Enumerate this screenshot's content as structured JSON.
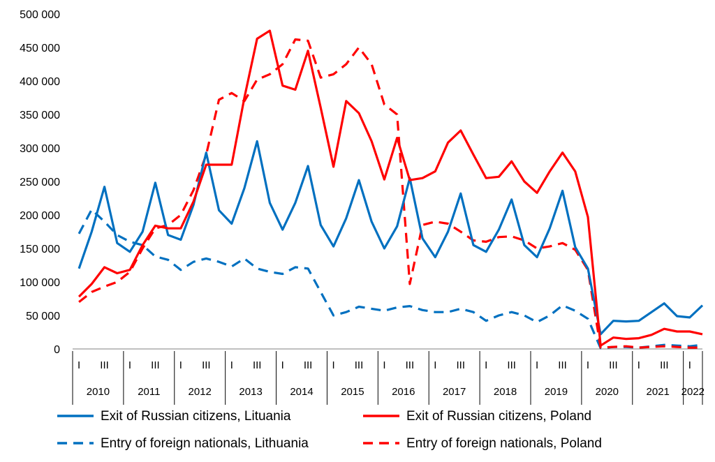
{
  "chart_data": {
    "type": "line",
    "title": "",
    "xlabel": "",
    "ylabel": "",
    "ylim": [
      0,
      500000
    ],
    "yticks": [
      "0",
      "50 000",
      "100 000",
      "150 000",
      "200 000",
      "250 000",
      "300 000",
      "350 000",
      "400 000",
      "450 000",
      "500 000"
    ],
    "years": [
      "2010",
      "2011",
      "2012",
      "2013",
      "2014",
      "2015",
      "2016",
      "2017",
      "2018",
      "2019",
      "2020",
      "2021",
      "2022"
    ],
    "quarter_labels": [
      [
        "I",
        "III"
      ],
      [
        "I",
        "III"
      ],
      [
        "I",
        "III"
      ],
      [
        "I",
        "III"
      ],
      [
        "I",
        "III"
      ],
      [
        "I",
        "III"
      ],
      [
        "I",
        "III"
      ],
      [
        "I",
        "III"
      ],
      [
        "I",
        "III"
      ],
      [
        "I",
        "III"
      ],
      [
        "I",
        "III"
      ],
      [
        "I",
        "III"
      ],
      [
        "I"
      ]
    ],
    "x": [
      "2010 I",
      "2010 II",
      "2010 III",
      "2010 IV",
      "2011 I",
      "2011 II",
      "2011 III",
      "2011 IV",
      "2012 I",
      "2012 II",
      "2012 III",
      "2012 IV",
      "2013 I",
      "2013 II",
      "2013 III",
      "2013 IV",
      "2014 I",
      "2014 II",
      "2014 III",
      "2014 IV",
      "2015 I",
      "2015 II",
      "2015 III",
      "2015 IV",
      "2016 I",
      "2016 II",
      "2016 III",
      "2016 IV",
      "2017 I",
      "2017 II",
      "2017 III",
      "2017 IV",
      "2018 I",
      "2018 II",
      "2018 III",
      "2018 IV",
      "2019 I",
      "2019 II",
      "2019 III",
      "2019 IV",
      "2020 I",
      "2020 II",
      "2020 III",
      "2020 IV",
      "2021 I",
      "2021 II",
      "2021 III",
      "2021 IV",
      "2022 I",
      "2022 II"
    ],
    "series": [
      {
        "name": "Exit of Russian citizens, Lituania",
        "color": "#0070C0",
        "dash": "solid",
        "values": [
          120000,
          175000,
          242000,
          158000,
          145000,
          175000,
          248000,
          170000,
          163000,
          215000,
          293000,
          207000,
          187000,
          240000,
          310000,
          218000,
          178000,
          218000,
          273000,
          185000,
          153000,
          195000,
          252000,
          190000,
          150000,
          183000,
          255000,
          165000,
          137000,
          175000,
          232000,
          155000,
          145000,
          178000,
          223000,
          155000,
          137000,
          180000,
          236000,
          152000,
          120000,
          22000,
          42000,
          41000,
          42000,
          55000,
          68000,
          49000,
          47000,
          65000
        ]
      },
      {
        "name": "Exit of Russian citizens, Poland",
        "color": "#FF0000",
        "dash": "solid",
        "values": [
          78000,
          97000,
          122000,
          113000,
          118000,
          155000,
          184000,
          180000,
          180000,
          220000,
          275000,
          275000,
          275000,
          375000,
          463000,
          475000,
          393000,
          387000,
          445000,
          360000,
          272000,
          370000,
          352000,
          310000,
          253000,
          315000,
          252000,
          255000,
          265000,
          308000,
          326000,
          290000,
          255000,
          257000,
          280000,
          250000,
          233000,
          265000,
          293000,
          265000,
          197000,
          5000,
          17000,
          15000,
          16000,
          21000,
          30000,
          26000,
          26000,
          22000
        ]
      },
      {
        "name": "Entry of foreign nationals, Lithuania",
        "color": "#0070C0",
        "dash": "dashed",
        "values": [
          172000,
          208000,
          190000,
          170000,
          160000,
          155000,
          138000,
          133000,
          118000,
          130000,
          135000,
          130000,
          123000,
          135000,
          120000,
          115000,
          112000,
          122000,
          120000,
          85000,
          50000,
          55000,
          63000,
          60000,
          57000,
          62000,
          64000,
          58000,
          55000,
          55000,
          60000,
          55000,
          42000,
          50000,
          55000,
          50000,
          40000,
          50000,
          65000,
          57000,
          45000,
          1000,
          3000,
          3000,
          2000,
          4000,
          6000,
          5000,
          4000,
          6000
        ]
      },
      {
        "name": "Entry of foreign nationals, Poland",
        "color": "#FF0000",
        "dash": "dashed",
        "values": [
          70000,
          85000,
          93000,
          100000,
          115000,
          150000,
          180000,
          185000,
          200000,
          237000,
          290000,
          372000,
          382000,
          370000,
          402000,
          410000,
          425000,
          462000,
          460000,
          405000,
          410000,
          425000,
          450000,
          425000,
          365000,
          350000,
          97000,
          185000,
          190000,
          187000,
          175000,
          162000,
          160000,
          167000,
          168000,
          162000,
          150000,
          153000,
          158000,
          148000,
          118000,
          2000,
          3000,
          4000,
          2000,
          3000,
          4000,
          3000,
          2000,
          2000
        ]
      }
    ]
  }
}
